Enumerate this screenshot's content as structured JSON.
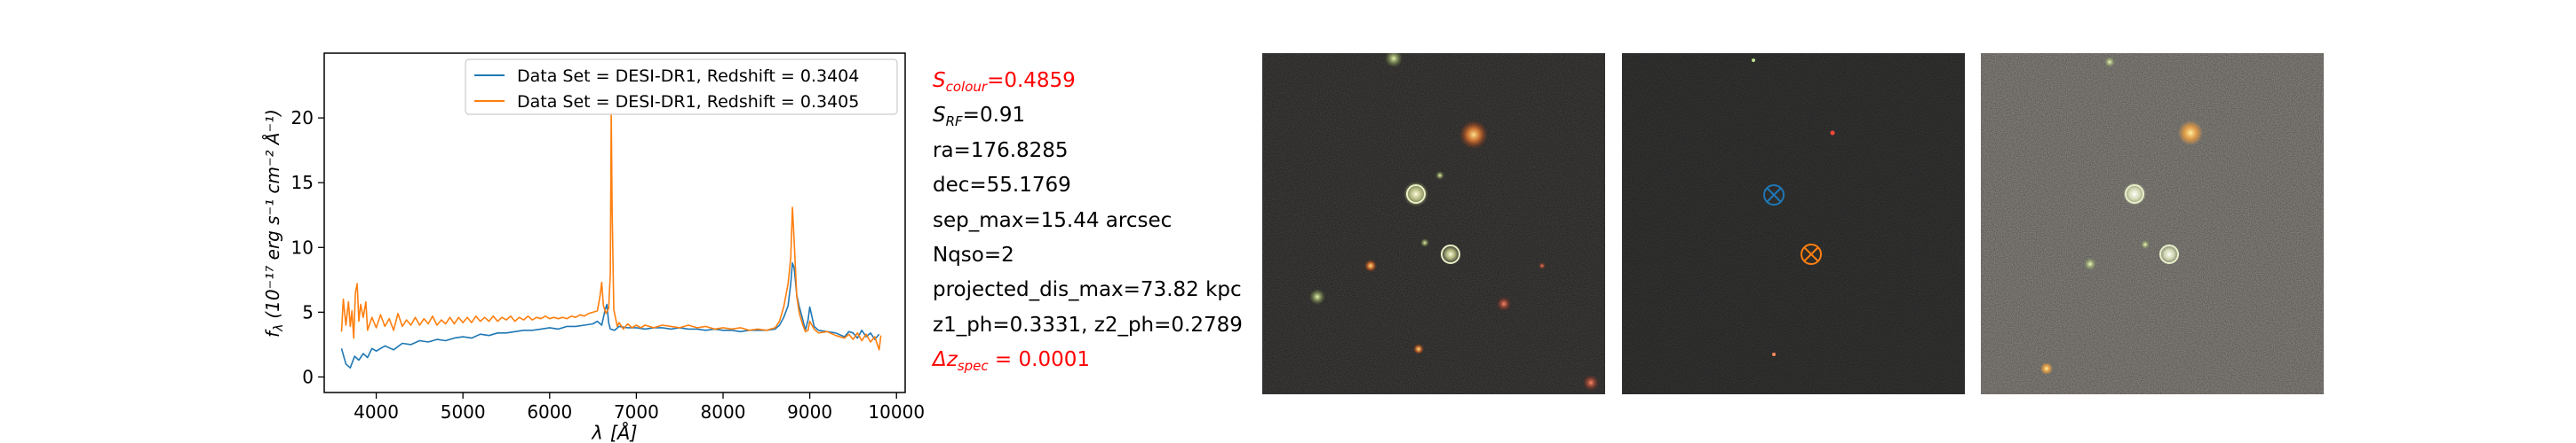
{
  "chart_data": {
    "type": "line",
    "xlabel_symbol": "λ",
    "xlabel_unit": "[Å]",
    "ylabel_text": "(10⁻¹⁷ erg s⁻¹ cm⁻² Å⁻¹)",
    "ylabel_symbol": "f",
    "ylabel_sub": "λ",
    "xlim": [
      3400,
      10100
    ],
    "ylim": [
      -1.2,
      25
    ],
    "xticks": [
      4000,
      5000,
      6000,
      7000,
      8000,
      9000,
      10000
    ],
    "yticks": [
      0,
      5,
      10,
      15,
      20
    ],
    "grid": false,
    "legend_position": "top-right",
    "series": [
      {
        "name": "Data Set = DESI-DR1, Redshift = 0.3404",
        "color": "#1f77b4",
        "points": [
          [
            3600,
            2.2
          ],
          [
            3650,
            1.0
          ],
          [
            3700,
            0.7
          ],
          [
            3750,
            1.6
          ],
          [
            3800,
            1.3
          ],
          [
            3850,
            1.8
          ],
          [
            3900,
            1.5
          ],
          [
            3950,
            2.2
          ],
          [
            4000,
            2.0
          ],
          [
            4100,
            2.4
          ],
          [
            4200,
            2.1
          ],
          [
            4300,
            2.6
          ],
          [
            4400,
            2.5
          ],
          [
            4500,
            2.8
          ],
          [
            4600,
            2.7
          ],
          [
            4700,
            2.9
          ],
          [
            4800,
            2.8
          ],
          [
            4900,
            3.0
          ],
          [
            5000,
            3.1
          ],
          [
            5100,
            3.0
          ],
          [
            5200,
            3.3
          ],
          [
            5300,
            3.2
          ],
          [
            5400,
            3.4
          ],
          [
            5500,
            3.4
          ],
          [
            5600,
            3.5
          ],
          [
            5700,
            3.6
          ],
          [
            5800,
            3.6
          ],
          [
            5900,
            3.7
          ],
          [
            6000,
            3.8
          ],
          [
            6100,
            3.7
          ],
          [
            6200,
            3.9
          ],
          [
            6300,
            3.9
          ],
          [
            6400,
            4.0
          ],
          [
            6500,
            4.1
          ],
          [
            6550,
            4.3
          ],
          [
            6600,
            4.0
          ],
          [
            6640,
            5.2
          ],
          [
            6660,
            5.6
          ],
          [
            6680,
            4.2
          ],
          [
            6700,
            3.7
          ],
          [
            6750,
            3.6
          ],
          [
            6800,
            3.9
          ],
          [
            6900,
            3.8
          ],
          [
            7000,
            3.8
          ],
          [
            7100,
            3.7
          ],
          [
            7200,
            3.8
          ],
          [
            7300,
            3.8
          ],
          [
            7400,
            3.7
          ],
          [
            7500,
            3.8
          ],
          [
            7600,
            3.7
          ],
          [
            7700,
            3.7
          ],
          [
            7800,
            3.6
          ],
          [
            7900,
            3.7
          ],
          [
            8000,
            3.6
          ],
          [
            8100,
            3.6
          ],
          [
            8200,
            3.5
          ],
          [
            8300,
            3.6
          ],
          [
            8400,
            3.6
          ],
          [
            8500,
            3.6
          ],
          [
            8600,
            3.7
          ],
          [
            8650,
            4.0
          ],
          [
            8700,
            4.6
          ],
          [
            8750,
            5.5
          ],
          [
            8780,
            7.2
          ],
          [
            8800,
            8.8
          ],
          [
            8820,
            8.4
          ],
          [
            8850,
            6.3
          ],
          [
            8880,
            5.4
          ],
          [
            8920,
            4.4
          ],
          [
            8950,
            3.6
          ],
          [
            8980,
            4.4
          ],
          [
            9000,
            5.4
          ],
          [
            9020,
            4.8
          ],
          [
            9050,
            3.9
          ],
          [
            9100,
            3.6
          ],
          [
            9200,
            3.5
          ],
          [
            9300,
            3.4
          ],
          [
            9400,
            3.1
          ],
          [
            9450,
            3.5
          ],
          [
            9500,
            3.4
          ],
          [
            9550,
            3.0
          ],
          [
            9600,
            3.6
          ],
          [
            9650,
            3.1
          ],
          [
            9700,
            3.4
          ],
          [
            9750,
            2.9
          ],
          [
            9800,
            3.3
          ]
        ]
      },
      {
        "name": "Data Set = DESI-DR1, Redshift = 0.3405",
        "color": "#ff7f0e",
        "points": [
          [
            3600,
            3.5
          ],
          [
            3620,
            6.0
          ],
          [
            3650,
            4.0
          ],
          [
            3680,
            5.8
          ],
          [
            3700,
            3.9
          ],
          [
            3720,
            5.1
          ],
          [
            3740,
            3.0
          ],
          [
            3760,
            6.5
          ],
          [
            3780,
            7.2
          ],
          [
            3800,
            4.3
          ],
          [
            3820,
            5.6
          ],
          [
            3850,
            4.6
          ],
          [
            3880,
            5.8
          ],
          [
            3900,
            3.6
          ],
          [
            3950,
            4.6
          ],
          [
            4000,
            3.8
          ],
          [
            4050,
            4.8
          ],
          [
            4100,
            3.9
          ],
          [
            4150,
            4.5
          ],
          [
            4200,
            3.6
          ],
          [
            4250,
            4.9
          ],
          [
            4300,
            3.9
          ],
          [
            4350,
            4.4
          ],
          [
            4400,
            4.0
          ],
          [
            4450,
            4.6
          ],
          [
            4500,
            4.0
          ],
          [
            4550,
            4.5
          ],
          [
            4600,
            4.1
          ],
          [
            4650,
            4.7
          ],
          [
            4700,
            4.0
          ],
          [
            4750,
            4.4
          ],
          [
            4800,
            4.1
          ],
          [
            4850,
            4.6
          ],
          [
            4900,
            4.1
          ],
          [
            4950,
            4.6
          ],
          [
            5000,
            4.2
          ],
          [
            5050,
            4.6
          ],
          [
            5100,
            4.2
          ],
          [
            5150,
            4.7
          ],
          [
            5200,
            4.3
          ],
          [
            5250,
            4.6
          ],
          [
            5300,
            4.3
          ],
          [
            5350,
            4.7
          ],
          [
            5400,
            4.3
          ],
          [
            5450,
            4.6
          ],
          [
            5500,
            4.4
          ],
          [
            5550,
            4.7
          ],
          [
            5600,
            4.3
          ],
          [
            5650,
            4.6
          ],
          [
            5700,
            4.4
          ],
          [
            5750,
            4.7
          ],
          [
            5800,
            4.4
          ],
          [
            5850,
            4.6
          ],
          [
            5900,
            4.5
          ],
          [
            5950,
            4.7
          ],
          [
            6000,
            4.5
          ],
          [
            6050,
            4.6
          ],
          [
            6100,
            4.5
          ],
          [
            6150,
            4.6
          ],
          [
            6200,
            4.5
          ],
          [
            6250,
            4.7
          ],
          [
            6300,
            4.6
          ],
          [
            6350,
            4.8
          ],
          [
            6400,
            4.7
          ],
          [
            6450,
            4.9
          ],
          [
            6500,
            5.0
          ],
          [
            6550,
            5.1
          ],
          [
            6580,
            6.2
          ],
          [
            6600,
            7.3
          ],
          [
            6620,
            5.5
          ],
          [
            6650,
            4.9
          ],
          [
            6680,
            5.3
          ],
          [
            6700,
            8.0
          ],
          [
            6710,
            20.4
          ],
          [
            6720,
            13.0
          ],
          [
            6740,
            5.2
          ],
          [
            6780,
            3.9
          ],
          [
            6800,
            4.2
          ],
          [
            6850,
            3.7
          ],
          [
            6900,
            4.1
          ],
          [
            6950,
            3.8
          ],
          [
            7000,
            4.0
          ],
          [
            7050,
            3.8
          ],
          [
            7100,
            4.0
          ],
          [
            7200,
            3.8
          ],
          [
            7300,
            4.0
          ],
          [
            7400,
            3.9
          ],
          [
            7500,
            3.8
          ],
          [
            7600,
            4.0
          ],
          [
            7700,
            3.8
          ],
          [
            7800,
            3.9
          ],
          [
            7900,
            3.7
          ],
          [
            8000,
            3.8
          ],
          [
            8100,
            3.7
          ],
          [
            8200,
            3.8
          ],
          [
            8300,
            3.6
          ],
          [
            8400,
            3.7
          ],
          [
            8500,
            3.6
          ],
          [
            8600,
            3.8
          ],
          [
            8650,
            4.3
          ],
          [
            8700,
            5.4
          ],
          [
            8750,
            7.2
          ],
          [
            8780,
            9.2
          ],
          [
            8800,
            13.1
          ],
          [
            8820,
            10.4
          ],
          [
            8850,
            6.2
          ],
          [
            8880,
            4.9
          ],
          [
            8920,
            4.0
          ],
          [
            8950,
            3.5
          ],
          [
            8980,
            3.6
          ],
          [
            9000,
            4.3
          ],
          [
            9050,
            3.7
          ],
          [
            9100,
            3.4
          ],
          [
            9200,
            3.5
          ],
          [
            9300,
            3.2
          ],
          [
            9400,
            3.0
          ],
          [
            9450,
            3.3
          ],
          [
            9500,
            2.9
          ],
          [
            9550,
            3.4
          ],
          [
            9600,
            2.8
          ],
          [
            9650,
            3.3
          ],
          [
            9700,
            2.7
          ],
          [
            9750,
            3.1
          ],
          [
            9800,
            2.1
          ],
          [
            9820,
            3.2
          ]
        ]
      }
    ]
  },
  "info": {
    "s_colour": {
      "symbol": "S",
      "sub": "colour",
      "value": "=0.4859",
      "color": "#ff0000"
    },
    "s_rf": {
      "symbol": "S",
      "sub": "RF",
      "value": "=0.91"
    },
    "ra": "ra=176.8285",
    "dec": "dec=55.1769",
    "sep_max": "sep_max=15.44 arcsec",
    "nqso": "Nqso=2",
    "projected_dis_max": "projected_dis_max=73.82 kpc",
    "z_ph": "z1_ph=0.3331, z2_ph=0.2789",
    "delta_z": {
      "symbol": "Δz",
      "sub": "spec",
      "value": " = 0.0001",
      "color": "#ff0000"
    }
  },
  "panels": {
    "marker_colors": {
      "ring": "#e8f0c8",
      "first_source": "#1f77b4",
      "second_source": "#ff7f0e"
    }
  }
}
